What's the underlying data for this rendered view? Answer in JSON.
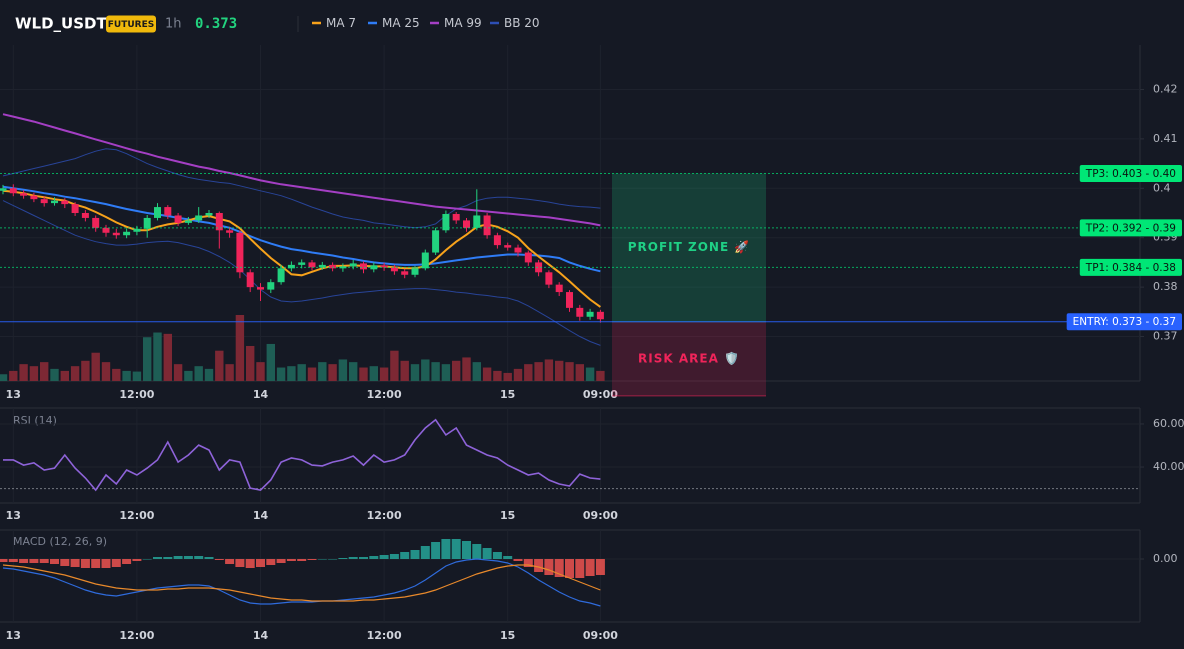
{
  "header": {
    "symbol": "WLD_USDT",
    "badge": "FUTURES",
    "interval": "1h",
    "price": "0.373"
  },
  "chart_data": [
    {
      "type": "candlestick",
      "categories": [
        null,
        "13",
        null,
        null,
        null,
        null,
        null,
        null,
        null,
        null,
        null,
        null,
        null,
        "12:00",
        null,
        null,
        null,
        null,
        null,
        null,
        null,
        null,
        null,
        null,
        null,
        "14",
        null,
        null,
        null,
        null,
        null,
        null,
        null,
        null,
        null,
        null,
        null,
        "12:00",
        null,
        null,
        null,
        null,
        null,
        null,
        null,
        null,
        null,
        null,
        null,
        "15",
        null,
        null,
        null,
        null,
        null,
        null,
        null,
        null,
        "09:00"
      ],
      "candles": {
        "open": [
          0.3995,
          0.4,
          0.399,
          0.3985,
          0.3978,
          0.397,
          0.3975,
          0.3968,
          0.395,
          0.394,
          0.392,
          0.391,
          0.3905,
          0.3912,
          0.3918,
          0.394,
          0.3962,
          0.3945,
          0.393,
          0.3935,
          0.3945,
          0.395,
          0.3915,
          0.391,
          0.383,
          0.38,
          0.3795,
          0.381,
          0.3838,
          0.3845,
          0.385,
          0.384,
          0.3845,
          0.3838,
          0.3842,
          0.3848,
          0.3836,
          0.3844,
          0.384,
          0.3832,
          0.3825,
          0.3838,
          0.387,
          0.3915,
          0.3948,
          0.3935,
          0.392,
          0.3945,
          0.3905,
          0.3885,
          0.388,
          0.387,
          0.385,
          0.383,
          0.3805,
          0.379,
          0.3758,
          0.374,
          0.375
        ],
        "high": [
          0.4007,
          0.4008,
          0.3996,
          0.3991,
          0.3984,
          0.3982,
          0.398,
          0.3972,
          0.3956,
          0.3945,
          0.3926,
          0.3918,
          0.3919,
          0.3924,
          0.3946,
          0.397,
          0.3966,
          0.395,
          0.3942,
          0.3962,
          0.3956,
          0.3953,
          0.3922,
          0.3914,
          0.3836,
          0.3808,
          0.3816,
          0.3845,
          0.3852,
          0.3856,
          0.3855,
          0.3851,
          0.385,
          0.3848,
          0.3855,
          0.3852,
          0.385,
          0.3849,
          0.3845,
          0.3837,
          0.3843,
          0.3876,
          0.392,
          0.3955,
          0.3952,
          0.394,
          0.3998,
          0.395,
          0.391,
          0.389,
          0.3886,
          0.3874,
          0.3855,
          0.3834,
          0.381,
          0.3794,
          0.3764,
          0.3756,
          0.3754
        ],
        "low": [
          0.3988,
          0.3984,
          0.3979,
          0.3972,
          0.3963,
          0.3965,
          0.396,
          0.3944,
          0.3933,
          0.3912,
          0.3902,
          0.3898,
          0.3899,
          0.3905,
          0.39,
          0.3935,
          0.3938,
          0.3924,
          0.3926,
          0.393,
          0.394,
          0.3878,
          0.39,
          0.3818,
          0.379,
          0.3772,
          0.3788,
          0.3805,
          0.3832,
          0.3838,
          0.3834,
          0.3835,
          0.3832,
          0.3831,
          0.3836,
          0.3828,
          0.383,
          0.3833,
          0.3825,
          0.3818,
          0.382,
          0.3834,
          0.3865,
          0.391,
          0.3928,
          0.3912,
          0.3915,
          0.3898,
          0.3878,
          0.3874,
          0.3862,
          0.3843,
          0.3822,
          0.3798,
          0.3782,
          0.375,
          0.3732,
          0.3734,
          0.3728
        ],
        "close": [
          0.4,
          0.399,
          0.3985,
          0.3978,
          0.397,
          0.3975,
          0.3968,
          0.395,
          0.394,
          0.392,
          0.391,
          0.3905,
          0.3912,
          0.3918,
          0.394,
          0.3962,
          0.3945,
          0.393,
          0.3935,
          0.3945,
          0.395,
          0.3915,
          0.391,
          0.383,
          0.38,
          0.3795,
          0.381,
          0.3838,
          0.3845,
          0.385,
          0.384,
          0.3845,
          0.3838,
          0.3842,
          0.3848,
          0.3836,
          0.3844,
          0.384,
          0.3832,
          0.3825,
          0.3838,
          0.387,
          0.3915,
          0.3948,
          0.3935,
          0.392,
          0.3945,
          0.3905,
          0.3885,
          0.388,
          0.387,
          0.385,
          0.383,
          0.3805,
          0.379,
          0.3758,
          0.374,
          0.375,
          0.3735
        ]
      },
      "up_color": "#22d37f",
      "down_color": "#f0245a",
      "volume": [
        10,
        15,
        25,
        22,
        28,
        18,
        15,
        22,
        30,
        42,
        28,
        18,
        15,
        14,
        65,
        72,
        70,
        25,
        15,
        22,
        18,
        45,
        25,
        98,
        52,
        28,
        55,
        20,
        22,
        25,
        20,
        28,
        25,
        32,
        28,
        20,
        22,
        20,
        45,
        30,
        25,
        32,
        28,
        25,
        30,
        35,
        28,
        20,
        15,
        12,
        18,
        25,
        28,
        32,
        30,
        28,
        25,
        20,
        15
      ],
      "volume_up_color": "#1e5e55",
      "volume_down_color": "#7d2834",
      "overlays": [
        {
          "name": "MA 7",
          "color": "#f7a21b",
          "values": [
            0.3995,
            0.3993,
            0.399,
            0.3985,
            0.3982,
            0.3978,
            0.3975,
            0.3967,
            0.3961,
            0.3952,
            0.3942,
            0.3931,
            0.3922,
            0.3915,
            0.3915,
            0.3922,
            0.3927,
            0.393,
            0.3935,
            0.3941,
            0.3944,
            0.3938,
            0.3933,
            0.3919,
            0.3898,
            0.3878,
            0.3859,
            0.3843,
            0.3826,
            0.3824,
            0.3831,
            0.3838,
            0.3843,
            0.3843,
            0.3844,
            0.3843,
            0.3842,
            0.3842,
            0.384,
            0.3838,
            0.3838,
            0.3842,
            0.3856,
            0.3875,
            0.3892,
            0.3906,
            0.3922,
            0.3927,
            0.3922,
            0.3913,
            0.39,
            0.3879,
            0.3862,
            0.3846,
            0.383,
            0.3812,
            0.3793,
            0.3775,
            0.376
          ]
        },
        {
          "name": "MA 25",
          "color": "#2f7cf6",
          "values": [
            0.4003,
            0.4,
            0.3997,
            0.3994,
            0.399,
            0.3987,
            0.3983,
            0.398,
            0.3976,
            0.3972,
            0.3968,
            0.3963,
            0.3958,
            0.3954,
            0.395,
            0.3947,
            0.3944,
            0.394,
            0.3937,
            0.3933,
            0.393,
            0.3925,
            0.392,
            0.3912,
            0.3903,
            0.3895,
            0.3888,
            0.3882,
            0.3877,
            0.3874,
            0.387,
            0.3867,
            0.3864,
            0.386,
            0.3857,
            0.3853,
            0.385,
            0.3848,
            0.3846,
            0.3845,
            0.3845,
            0.3846,
            0.3848,
            0.3851,
            0.3854,
            0.3857,
            0.386,
            0.3862,
            0.3864,
            0.3866,
            0.3866,
            0.3865,
            0.3864,
            0.3862,
            0.3859,
            0.385,
            0.3843,
            0.3837,
            0.3832
          ]
        },
        {
          "name": "MA 99",
          "color": "#a43fc4",
          "values": [
            0.415,
            0.4145,
            0.414,
            0.4135,
            0.4129,
            0.4123,
            0.4117,
            0.4111,
            0.4105,
            0.4099,
            0.4093,
            0.4087,
            0.4081,
            0.4075,
            0.407,
            0.4064,
            0.4059,
            0.4054,
            0.4049,
            0.4044,
            0.404,
            0.4035,
            0.4031,
            0.4026,
            0.4021,
            0.4016,
            0.4012,
            0.4008,
            0.4005,
            0.4002,
            0.3999,
            0.3996,
            0.3993,
            0.399,
            0.3987,
            0.3984,
            0.3981,
            0.3978,
            0.3975,
            0.3972,
            0.3969,
            0.3966,
            0.3963,
            0.3961,
            0.3959,
            0.3957,
            0.3955,
            0.3953,
            0.3951,
            0.3949,
            0.3947,
            0.3945,
            0.3943,
            0.3941,
            0.3938,
            0.3935,
            0.3932,
            0.3929,
            0.3925
          ]
        },
        {
          "name": "BB 20",
          "color": "#2d4fb5",
          "upper": [
            0.4025,
            0.403,
            0.4035,
            0.404,
            0.4045,
            0.405,
            0.4055,
            0.406,
            0.4068,
            0.4075,
            0.408,
            0.4078,
            0.407,
            0.406,
            0.405,
            0.4042,
            0.4035,
            0.4028,
            0.4022,
            0.4018,
            0.4015,
            0.4012,
            0.401,
            0.4005,
            0.4,
            0.3995,
            0.399,
            0.3985,
            0.3978,
            0.397,
            0.3962,
            0.3955,
            0.3948,
            0.3942,
            0.3938,
            0.3935,
            0.393,
            0.3928,
            0.3925,
            0.3922,
            0.392,
            0.3922,
            0.3928,
            0.3945,
            0.3958,
            0.3965,
            0.3975,
            0.398,
            0.3982,
            0.3982,
            0.398,
            0.3978,
            0.3975,
            0.3972,
            0.3968,
            0.3965,
            0.3963,
            0.3962,
            0.396
          ],
          "lower": [
            0.3975,
            0.3965,
            0.3955,
            0.3945,
            0.3935,
            0.3925,
            0.3915,
            0.3905,
            0.3898,
            0.3892,
            0.3888,
            0.3885,
            0.3885,
            0.3887,
            0.389,
            0.3892,
            0.3893,
            0.389,
            0.3885,
            0.388,
            0.3872,
            0.3862,
            0.385,
            0.3835,
            0.3815,
            0.3795,
            0.378,
            0.3772,
            0.377,
            0.3772,
            0.3775,
            0.3778,
            0.3782,
            0.3785,
            0.3788,
            0.379,
            0.3792,
            0.3794,
            0.3795,
            0.3796,
            0.3797,
            0.3797,
            0.3795,
            0.3793,
            0.379,
            0.3788,
            0.3785,
            0.3783,
            0.378,
            0.3778,
            0.3772,
            0.3762,
            0.375,
            0.3738,
            0.3725,
            0.3712,
            0.37,
            0.369,
            0.3682
          ]
        }
      ],
      "ylim": [
        0.361,
        0.429
      ],
      "yticks": [
        0.37,
        0.38,
        0.39,
        0.4,
        0.41,
        0.42
      ],
      "grid": true,
      "levels": [
        {
          "label": "TP3: 0.403 - 0.40",
          "value": 0.403,
          "color": "#00e676",
          "text_color": "#08160f",
          "line_style": "dotted"
        },
        {
          "label": "TP2: 0.392 - 0.39",
          "value": 0.392,
          "color": "#00e676",
          "text_color": "#08160f",
          "line_style": "dotted"
        },
        {
          "label": "TP1: 0.384 - 0.38",
          "value": 0.384,
          "color": "#00e676",
          "text_color": "#08160f",
          "line_style": "dotted"
        },
        {
          "label": "ENTRY: 0.373 - 0.37",
          "value": 0.373,
          "color": "#2962ff",
          "text_color": "#ffffff",
          "line_style": "solid"
        }
      ],
      "zones": [
        {
          "label": "PROFIT ZONE 🚀",
          "from": 0.373,
          "to": 0.403,
          "color": "#1fd085"
        },
        {
          "label": "RISK AREA 🛡️",
          "from": 0.358,
          "to": 0.373,
          "color": "#f0245a"
        }
      ]
    },
    {
      "type": "line",
      "title": "RSI (14)",
      "color": "#8e63d9",
      "values": [
        43.3,
        43.3,
        40.9,
        41.9,
        38.6,
        39.5,
        45.6,
        39.5,
        34.9,
        29.3,
        36.3,
        32.1,
        38.6,
        36.3,
        39.5,
        43.3,
        51.6,
        42.3,
        45.6,
        50.2,
        47.9,
        38.6,
        43.3,
        42.3,
        30.2,
        29.3,
        34.0,
        42.3,
        44.2,
        43.3,
        40.9,
        40.5,
        42.3,
        43.3,
        45.1,
        40.9,
        45.6,
        42.3,
        43.3,
        45.6,
        52.6,
        58.1,
        61.9,
        54.9,
        58.1,
        50.2,
        47.9,
        45.6,
        44.2,
        40.9,
        38.6,
        36.3,
        37.2,
        34.0,
        32.1,
        31.2,
        36.7,
        34.9,
        34.4
      ],
      "ylim": [
        23.3,
        67.4
      ],
      "yticks": [
        {
          "value": 40,
          "label": "40.00"
        },
        {
          "value": 60,
          "label": "60.00"
        }
      ],
      "level_line": 30
    },
    {
      "type": "macd",
      "title": "MACD (12, 26, 9)",
      "series": [
        {
          "color": "#2f6bdc",
          "values": [
            -0.0009,
            -0.001,
            -0.0012,
            -0.0014,
            -0.0016,
            -0.0019,
            -0.0023,
            -0.0027,
            -0.0031,
            -0.0034,
            -0.0036,
            -0.0037,
            -0.0035,
            -0.0033,
            -0.0031,
            -0.0029,
            -0.0028,
            -0.0027,
            -0.0026,
            -0.0026,
            -0.0027,
            -0.0031,
            -0.0036,
            -0.0041,
            -0.0044,
            -0.0045,
            -0.0045,
            -0.0044,
            -0.0043,
            -0.0043,
            -0.0043,
            -0.0042,
            -0.0042,
            -0.0041,
            -0.004,
            -0.0039,
            -0.0038,
            -0.0036,
            -0.0034,
            -0.0031,
            -0.0027,
            -0.0021,
            -0.0014,
            -0.0007,
            -0.0003,
            -0.0001,
            0,
            -0.0001,
            -0.0002,
            -0.0004,
            -0.0008,
            -0.0014,
            -0.0021,
            -0.0027,
            -0.0033,
            -0.0038,
            -0.0042,
            -0.0044,
            -0.0047
          ]
        },
        {
          "color": "#e8892b",
          "values": [
            -0.0006,
            -0.0007,
            -0.0008,
            -0.001,
            -0.0012,
            -0.0014,
            -0.0016,
            -0.0019,
            -0.0022,
            -0.0025,
            -0.0027,
            -0.0029,
            -0.003,
            -0.0031,
            -0.0031,
            -0.0031,
            -0.003,
            -0.003,
            -0.0029,
            -0.0029,
            -0.0029,
            -0.003,
            -0.0031,
            -0.0033,
            -0.0035,
            -0.0037,
            -0.0039,
            -0.004,
            -0.0041,
            -0.0041,
            -0.0042,
            -0.0042,
            -0.0042,
            -0.0042,
            -0.0042,
            -0.0041,
            -0.0041,
            -0.004,
            -0.0039,
            -0.0038,
            -0.0036,
            -0.0034,
            -0.0031,
            -0.0027,
            -0.0023,
            -0.0019,
            -0.0015,
            -0.0012,
            -0.0009,
            -0.0007,
            -0.0006,
            -0.0006,
            -0.0008,
            -0.0011,
            -0.0015,
            -0.0019,
            -0.0023,
            -0.0027,
            -0.0031
          ]
        }
      ],
      "histogram": {
        "up_color": "#26a69a",
        "down_color": "#ef5350",
        "values": [
          -0.0003,
          -0.0003,
          -0.0004,
          -0.0004,
          -0.0004,
          -0.0005,
          -0.0007,
          -0.0008,
          -0.0009,
          -0.0009,
          -0.0009,
          -0.0008,
          -0.0005,
          -0.0002,
          0,
          0.0002,
          0.0002,
          0.0003,
          0.0003,
          0.0003,
          0.0002,
          -0.0001,
          -0.0005,
          -0.0008,
          -0.0009,
          -0.0008,
          -0.0006,
          -0.0004,
          -0.0002,
          -0.0002,
          -0.0001,
          0,
          0,
          0.0001,
          0.0002,
          0.0002,
          0.0003,
          0.0004,
          0.0005,
          0.0007,
          0.0009,
          0.0013,
          0.0017,
          0.002,
          0.002,
          0.0018,
          0.0015,
          0.0011,
          0.0007,
          0.0003,
          -0.0002,
          -0.0008,
          -0.0013,
          -0.0016,
          -0.0018,
          -0.0019,
          -0.0019,
          -0.0017,
          -0.0016
        ]
      },
      "ylim": [
        -0.0063,
        0.0029
      ],
      "yticks": [
        {
          "value": 0,
          "label": "0.00"
        }
      ]
    }
  ]
}
